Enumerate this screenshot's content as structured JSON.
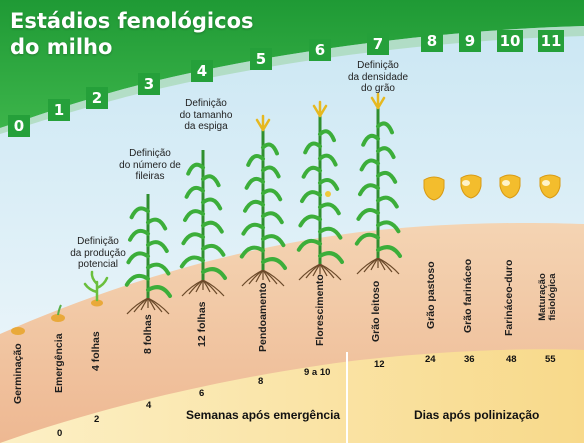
{
  "title": {
    "line1": "Estádios fenológicos",
    "line2": "do milho"
  },
  "stages": [
    "0",
    "1",
    "2",
    "3",
    "4",
    "5",
    "6",
    "7",
    "8",
    "9",
    "10",
    "11"
  ],
  "notes": {
    "producao": "Definição\nda produção\npotencial",
    "fileiras": "Definição\ndo número de\nfileiras",
    "espiga": "Definição\ndo tamanho\nda espiga",
    "densidade": "Definição\nda densidade\ndo grão"
  },
  "stage_names": [
    "Germinação",
    "Emergência",
    "4 folhas",
    "8 folhas",
    "12 folhas",
    "Pendoamento",
    "Florescimento",
    "Grão leitoso",
    "Grão pastoso",
    "Grão farináceo",
    "Farináceo-duro",
    "Maturação\nfisiológica"
  ],
  "weeks": [
    "0",
    "2",
    "4",
    "6",
    "8",
    "9 a 10",
    "12"
  ],
  "days": [
    "24",
    "36",
    "48",
    "55"
  ],
  "axis_labels": {
    "weeks": "Semanas após emergência",
    "days": "Dias após polinização"
  },
  "colors": {
    "green": "#25a03a",
    "sky": "#dff0f8",
    "soil": "#f2c9a3",
    "band": "#fbe9b0",
    "plant": "#3aa83a",
    "kernel": "#f2b820"
  }
}
